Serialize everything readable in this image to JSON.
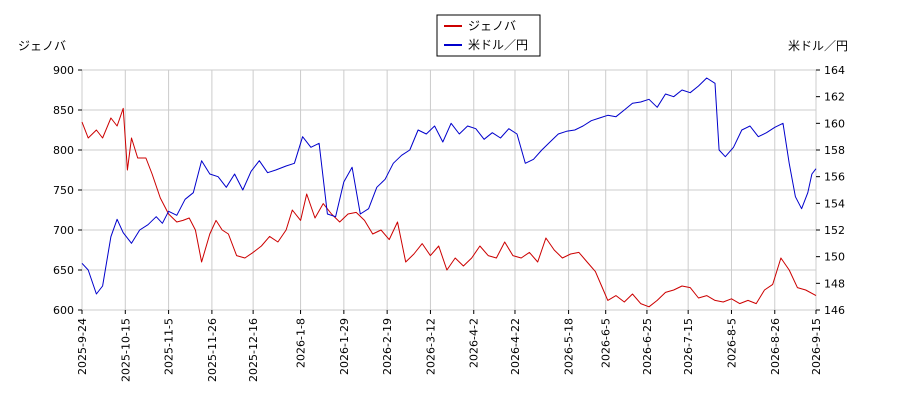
{
  "chart_data": {
    "type": "line",
    "left_axis_title": "ジェノバ",
    "right_axis_title": "米ドル／円",
    "left_ylim": [
      600,
      900
    ],
    "left_yticks": [
      600,
      650,
      700,
      750,
      800,
      850,
      900
    ],
    "right_ylim": [
      146,
      164
    ],
    "right_yticks": [
      146,
      148,
      150,
      152,
      154,
      156,
      158,
      160,
      162,
      164
    ],
    "grid": true,
    "legend_placement": "top-center",
    "x_start": "2025-09-24",
    "x_end": "2026-09-15",
    "x_tick_labels": [
      "2025-9-24",
      "2025-10-15",
      "2025-11-5",
      "2025-11-26",
      "2025-12-16",
      "2026-1-8",
      "2026-1-29",
      "2026-2-19",
      "2026-3-12",
      "2026-4-2",
      "2026-4-22",
      "2026-5-18",
      "2026-6-5",
      "2026-6-25",
      "2026-7-15",
      "2026-8-5",
      "2026-8-26",
      "2026-9-15"
    ],
    "series": [
      {
        "name": "ジェノバ",
        "axis": "left",
        "color": "#cc0000",
        "points": [
          [
            "2025-09-24",
            835
          ],
          [
            "2025-09-27",
            815
          ],
          [
            "2025-10-01",
            825
          ],
          [
            "2025-10-04",
            815
          ],
          [
            "2025-10-08",
            840
          ],
          [
            "2025-10-11",
            830
          ],
          [
            "2025-10-14",
            852
          ],
          [
            "2025-10-16",
            775
          ],
          [
            "2025-10-18",
            815
          ],
          [
            "2025-10-21",
            790
          ],
          [
            "2025-10-25",
            790
          ],
          [
            "2025-10-28",
            770
          ],
          [
            "2025-11-01",
            740
          ],
          [
            "2025-11-05",
            720
          ],
          [
            "2025-11-09",
            710
          ],
          [
            "2025-11-12",
            712
          ],
          [
            "2025-11-15",
            715
          ],
          [
            "2025-11-18",
            700
          ],
          [
            "2025-11-21",
            660
          ],
          [
            "2025-11-25",
            695
          ],
          [
            "2025-11-28",
            712
          ],
          [
            "2025-12-01",
            700
          ],
          [
            "2025-12-04",
            695
          ],
          [
            "2025-12-08",
            668
          ],
          [
            "2025-12-12",
            665
          ],
          [
            "2025-12-16",
            672
          ],
          [
            "2025-12-20",
            680
          ],
          [
            "2025-12-24",
            692
          ],
          [
            "2025-12-28",
            685
          ],
          [
            "2026-01-01",
            700
          ],
          [
            "2026-01-04",
            725
          ],
          [
            "2026-01-08",
            712
          ],
          [
            "2026-01-11",
            745
          ],
          [
            "2026-01-15",
            715
          ],
          [
            "2026-01-19",
            733
          ],
          [
            "2026-01-23",
            720
          ],
          [
            "2026-01-27",
            710
          ],
          [
            "2026-01-31",
            720
          ],
          [
            "2026-02-04",
            722
          ],
          [
            "2026-02-08",
            712
          ],
          [
            "2026-02-12",
            695
          ],
          [
            "2026-02-16",
            700
          ],
          [
            "2026-02-20",
            688
          ],
          [
            "2026-02-24",
            710
          ],
          [
            "2026-02-28",
            660
          ],
          [
            "2026-03-04",
            670
          ],
          [
            "2026-03-08",
            683
          ],
          [
            "2026-03-12",
            668
          ],
          [
            "2026-03-16",
            680
          ],
          [
            "2026-03-20",
            650
          ],
          [
            "2026-03-24",
            665
          ],
          [
            "2026-03-28",
            655
          ],
          [
            "2026-04-01",
            665
          ],
          [
            "2026-04-05",
            680
          ],
          [
            "2026-04-09",
            668
          ],
          [
            "2026-04-13",
            665
          ],
          [
            "2026-04-17",
            685
          ],
          [
            "2026-04-21",
            668
          ],
          [
            "2026-04-25",
            665
          ],
          [
            "2026-04-29",
            672
          ],
          [
            "2026-05-03",
            660
          ],
          [
            "2026-05-07",
            690
          ],
          [
            "2026-05-11",
            675
          ],
          [
            "2026-05-15",
            665
          ],
          [
            "2026-05-19",
            670
          ],
          [
            "2026-05-23",
            672
          ],
          [
            "2026-05-27",
            660
          ],
          [
            "2026-05-31",
            648
          ],
          [
            "2026-06-03",
            630
          ],
          [
            "2026-06-06",
            612
          ],
          [
            "2026-06-10",
            618
          ],
          [
            "2026-06-14",
            610
          ],
          [
            "2026-06-18",
            620
          ],
          [
            "2026-06-22",
            608
          ],
          [
            "2026-06-26",
            604
          ],
          [
            "2026-06-30",
            612
          ],
          [
            "2026-07-04",
            622
          ],
          [
            "2026-07-08",
            625
          ],
          [
            "2026-07-12",
            630
          ],
          [
            "2026-07-16",
            628
          ],
          [
            "2026-07-20",
            615
          ],
          [
            "2026-07-24",
            618
          ],
          [
            "2026-07-28",
            612
          ],
          [
            "2026-08-01",
            610
          ],
          [
            "2026-08-05",
            614
          ],
          [
            "2026-08-09",
            608
          ],
          [
            "2026-08-13",
            612
          ],
          [
            "2026-08-17",
            608
          ],
          [
            "2026-08-21",
            625
          ],
          [
            "2026-08-25",
            632
          ],
          [
            "2026-08-29",
            665
          ],
          [
            "2026-09-02",
            650
          ],
          [
            "2026-09-06",
            628
          ],
          [
            "2026-09-10",
            625
          ],
          [
            "2026-09-15",
            618
          ]
        ]
      },
      {
        "name": "米ドル／円",
        "axis": "right",
        "color": "#0000cc",
        "points": [
          [
            "2025-09-24",
            149.5
          ],
          [
            "2025-09-27",
            149.0
          ],
          [
            "2025-10-01",
            147.2
          ],
          [
            "2025-10-04",
            147.8
          ],
          [
            "2025-10-08",
            151.5
          ],
          [
            "2025-10-11",
            152.8
          ],
          [
            "2025-10-14",
            151.8
          ],
          [
            "2025-10-18",
            151.0
          ],
          [
            "2025-10-22",
            152.0
          ],
          [
            "2025-10-26",
            152.4
          ],
          [
            "2025-10-30",
            153.0
          ],
          [
            "2025-11-02",
            152.5
          ],
          [
            "2025-11-05",
            153.4
          ],
          [
            "2025-11-09",
            153.1
          ],
          [
            "2025-11-13",
            154.3
          ],
          [
            "2025-11-17",
            154.8
          ],
          [
            "2025-11-21",
            157.2
          ],
          [
            "2025-11-25",
            156.2
          ],
          [
            "2025-11-29",
            156.0
          ],
          [
            "2025-12-03",
            155.2
          ],
          [
            "2025-12-07",
            156.2
          ],
          [
            "2025-12-11",
            155.0
          ],
          [
            "2025-12-15",
            156.4
          ],
          [
            "2025-12-19",
            157.2
          ],
          [
            "2025-12-23",
            156.3
          ],
          [
            "2025-12-27",
            156.5
          ],
          [
            "2026-01-01",
            156.8
          ],
          [
            "2026-01-05",
            157.0
          ],
          [
            "2026-01-09",
            159.0
          ],
          [
            "2026-01-13",
            158.2
          ],
          [
            "2026-01-17",
            158.5
          ],
          [
            "2026-01-21",
            153.2
          ],
          [
            "2026-01-25",
            153.0
          ],
          [
            "2026-01-29",
            155.6
          ],
          [
            "2026-02-02",
            156.7
          ],
          [
            "2026-02-06",
            153.2
          ],
          [
            "2026-02-10",
            153.6
          ],
          [
            "2026-02-14",
            155.2
          ],
          [
            "2026-02-18",
            155.8
          ],
          [
            "2026-02-22",
            157.0
          ],
          [
            "2026-02-26",
            157.6
          ],
          [
            "2026-03-02",
            158.0
          ],
          [
            "2026-03-06",
            159.5
          ],
          [
            "2026-03-10",
            159.2
          ],
          [
            "2026-03-14",
            159.8
          ],
          [
            "2026-03-18",
            158.6
          ],
          [
            "2026-03-22",
            160.0
          ],
          [
            "2026-03-26",
            159.2
          ],
          [
            "2026-03-30",
            159.8
          ],
          [
            "2026-04-03",
            159.6
          ],
          [
            "2026-04-07",
            158.8
          ],
          [
            "2026-04-11",
            159.3
          ],
          [
            "2026-04-15",
            158.9
          ],
          [
            "2026-04-19",
            159.6
          ],
          [
            "2026-04-23",
            159.2
          ],
          [
            "2026-04-27",
            157.0
          ],
          [
            "2026-05-01",
            157.3
          ],
          [
            "2026-05-05",
            158.0
          ],
          [
            "2026-05-09",
            158.6
          ],
          [
            "2026-05-13",
            159.2
          ],
          [
            "2026-05-17",
            159.4
          ],
          [
            "2026-05-21",
            159.5
          ],
          [
            "2026-05-25",
            159.8
          ],
          [
            "2026-05-29",
            160.2
          ],
          [
            "2026-06-02",
            160.4
          ],
          [
            "2026-06-06",
            160.6
          ],
          [
            "2026-06-10",
            160.5
          ],
          [
            "2026-06-14",
            161.0
          ],
          [
            "2026-06-18",
            161.5
          ],
          [
            "2026-06-22",
            161.6
          ],
          [
            "2026-06-26",
            161.8
          ],
          [
            "2026-06-30",
            161.2
          ],
          [
            "2026-07-04",
            162.2
          ],
          [
            "2026-07-08",
            162.0
          ],
          [
            "2026-07-12",
            162.5
          ],
          [
            "2026-07-16",
            162.3
          ],
          [
            "2026-07-20",
            162.8
          ],
          [
            "2026-07-24",
            163.4
          ],
          [
            "2026-07-28",
            163.0
          ],
          [
            "2026-07-30",
            158.0
          ],
          [
            "2026-08-02",
            157.5
          ],
          [
            "2026-08-06",
            158.2
          ],
          [
            "2026-08-10",
            159.5
          ],
          [
            "2026-08-14",
            159.8
          ],
          [
            "2026-08-18",
            159.0
          ],
          [
            "2026-08-22",
            159.3
          ],
          [
            "2026-08-26",
            159.7
          ],
          [
            "2026-08-30",
            160.0
          ],
          [
            "2026-09-02",
            157.0
          ],
          [
            "2026-09-05",
            154.5
          ],
          [
            "2026-09-08",
            153.6
          ],
          [
            "2026-09-11",
            154.8
          ],
          [
            "2026-09-13",
            156.2
          ],
          [
            "2026-09-15",
            156.6
          ]
        ]
      }
    ]
  }
}
